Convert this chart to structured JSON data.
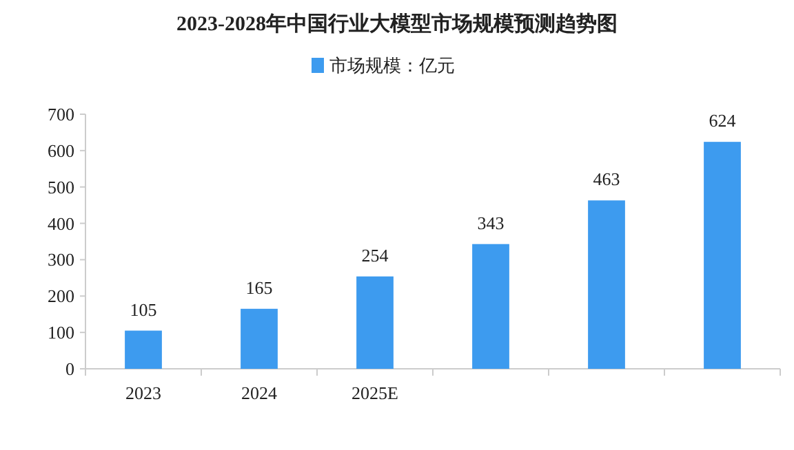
{
  "chart_data": {
    "type": "bar",
    "title": "2023-2028年中国行业大模型市场规模预测趋势图",
    "categories": [
      "2023",
      "2024",
      "2025E",
      null,
      null,
      null
    ],
    "series": [
      {
        "name": "市场规模：亿元",
        "color": "#3d9bef",
        "values": [
          105,
          165,
          254,
          343,
          463,
          624
        ]
      }
    ],
    "ylim": [
      0,
      700
    ],
    "yticks": [
      0,
      100,
      200,
      300,
      400,
      500,
      600,
      700
    ],
    "data_labels": true,
    "legend": "top",
    "grid": false
  }
}
